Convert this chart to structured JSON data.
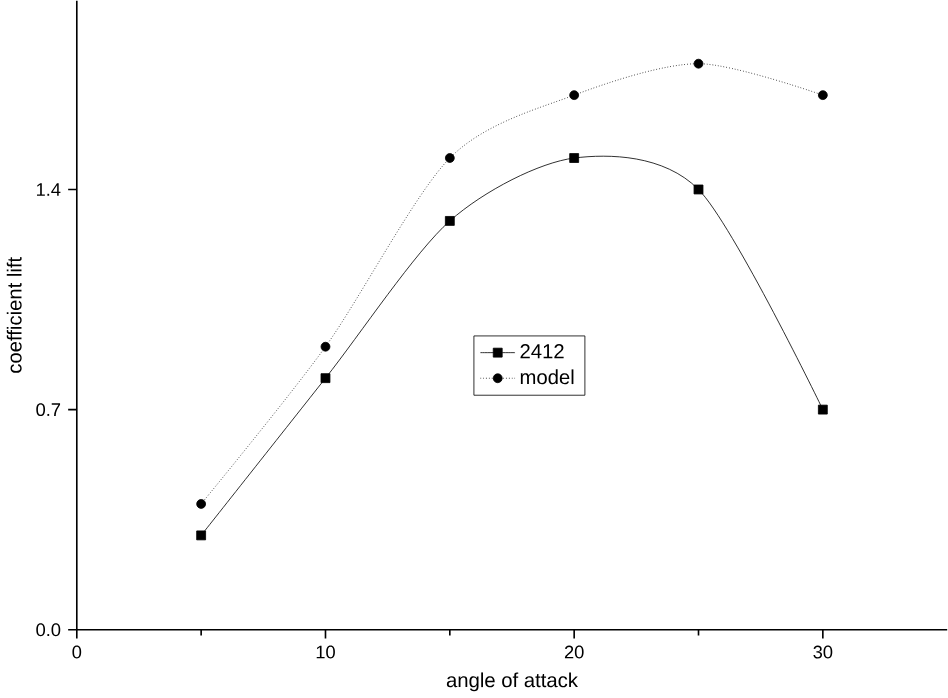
{
  "chart_data": {
    "type": "line",
    "xlabel": "angle of  attack",
    "ylabel": "coefficient lift",
    "xlim": [
      0,
      35
    ],
    "ylim": [
      0,
      2
    ],
    "xticks": [
      0,
      10,
      20,
      30
    ],
    "yticks": [
      {
        "value": 0,
        "label": "0.0"
      },
      0.7,
      1.4
    ],
    "legend": "center",
    "grid": false,
    "series": [
      {
        "name": "2412",
        "color": "#000000",
        "marker": "square",
        "line_style": "solid",
        "x": [
          5,
          10,
          15,
          20,
          25,
          30
        ],
        "values": [
          0.3,
          0.8,
          1.3,
          1.5,
          1.4,
          0.7
        ]
      },
      {
        "name": "model",
        "color": "#000000",
        "marker": "circle",
        "line_style": "dotted",
        "x": [
          5,
          10,
          15,
          20,
          25,
          30
        ],
        "values": [
          0.4,
          0.9,
          1.5,
          1.7,
          1.8,
          1.7
        ]
      }
    ]
  }
}
